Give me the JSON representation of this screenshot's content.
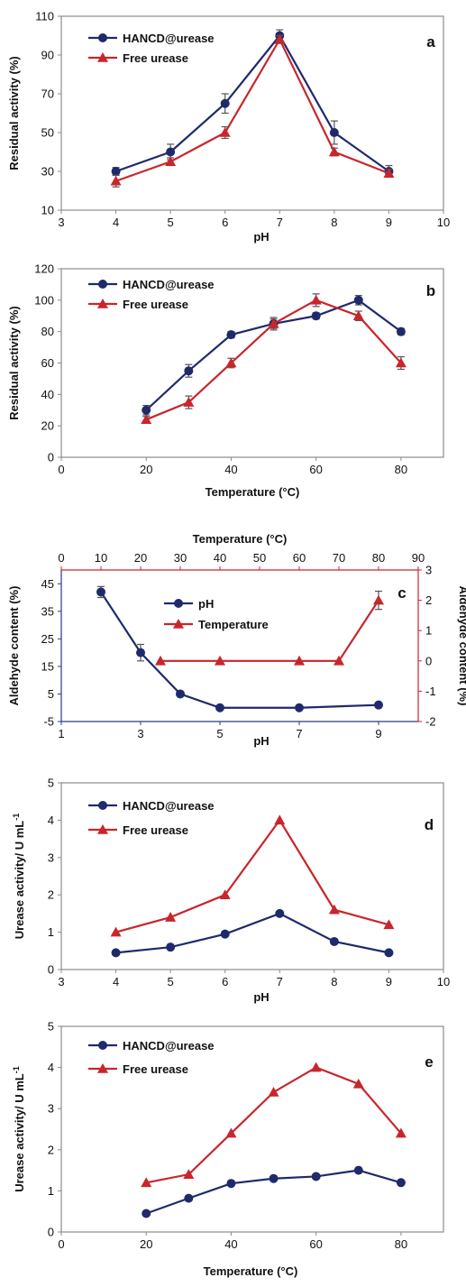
{
  "colors": {
    "navy": "#1f2a6b",
    "red": "#c8262c",
    "axis": "#8c8c8c",
    "error": "#555555"
  },
  "chart_data": [
    {
      "panel": "a",
      "type": "line",
      "xlabel": "pH",
      "ylabel": "Residual activity (%)",
      "xlim": [
        3,
        10
      ],
      "ylim": [
        10,
        110
      ],
      "xticks": [
        3,
        4,
        5,
        6,
        7,
        8,
        9,
        10
      ],
      "yticks": [
        10,
        30,
        50,
        70,
        90,
        110
      ],
      "legend_position": "top-left",
      "series": [
        {
          "name": "HANCD@urease",
          "color": "#1f2a6b",
          "marker": "circle",
          "x": [
            4,
            5,
            6,
            7,
            8,
            9
          ],
          "y": [
            30,
            40,
            65,
            100,
            50,
            30
          ],
          "err": [
            2,
            4,
            5,
            3,
            6,
            3
          ]
        },
        {
          "name": "Free urease",
          "color": "#c8262c",
          "marker": "triangle",
          "x": [
            4,
            5,
            6,
            7,
            8,
            9
          ],
          "y": [
            25,
            35,
            50,
            98,
            40,
            29
          ],
          "err": [
            3,
            2,
            3,
            2,
            2,
            2
          ]
        }
      ]
    },
    {
      "panel": "b",
      "type": "line",
      "xlabel": "Temperature (°C)",
      "ylabel": "Residual activity (%)",
      "xlim": [
        0,
        90
      ],
      "ylim": [
        0,
        120
      ],
      "xticks": [
        0,
        20,
        40,
        60,
        80
      ],
      "yticks": [
        0,
        20,
        40,
        60,
        80,
        100,
        120
      ],
      "legend_position": "top-left",
      "series": [
        {
          "name": "HANCD@urease",
          "color": "#1f2a6b",
          "marker": "circle",
          "x": [
            20,
            30,
            40,
            50,
            60,
            70,
            80
          ],
          "y": [
            30,
            55,
            78,
            85,
            90,
            100,
            80
          ],
          "err": [
            3,
            4,
            2,
            3,
            2,
            3,
            2
          ]
        },
        {
          "name": "Free urease",
          "color": "#c8262c",
          "marker": "triangle",
          "x": [
            20,
            30,
            40,
            50,
            60,
            70,
            80
          ],
          "y": [
            24,
            35,
            60,
            85,
            100,
            90,
            60
          ],
          "err": [
            2,
            4,
            3,
            4,
            4,
            3,
            4
          ]
        }
      ]
    },
    {
      "panel": "c",
      "type": "line",
      "xlabel": "pH",
      "ylabel": "Aldehyde content (%)",
      "x2label": "Temperature (°C)",
      "y2label": "Aldehyde content (%)",
      "xlim": [
        1,
        10
      ],
      "ylim": [
        -5,
        50
      ],
      "x2lim": [
        0,
        90
      ],
      "y2lim": [
        -2,
        3
      ],
      "xticks": [
        1,
        3,
        5,
        7,
        9
      ],
      "yticks": [
        -5,
        5,
        15,
        25,
        35,
        45
      ],
      "x2ticks": [
        0,
        10,
        20,
        30,
        40,
        50,
        60,
        70,
        80,
        90
      ],
      "y2ticks": [
        -2,
        -1,
        0,
        1,
        2,
        3
      ],
      "legend_position": "top-center",
      "series": [
        {
          "name": "pH",
          "color": "#1f2a6b",
          "marker": "circle",
          "axes": "bottom-left",
          "x": [
            2,
            3,
            4,
            5,
            7,
            9
          ],
          "y": [
            42,
            20,
            5,
            0,
            0,
            1
          ],
          "err": [
            2,
            3,
            0.5,
            0,
            0,
            0
          ]
        },
        {
          "name": "Temperature",
          "color": "#c8262c",
          "marker": "triangle",
          "axes": "top-right",
          "x": [
            25,
            40,
            60,
            70,
            80
          ],
          "y": [
            0,
            0,
            0,
            0,
            2
          ],
          "err": [
            0,
            0,
            0,
            0,
            0.3
          ]
        }
      ]
    },
    {
      "panel": "d",
      "type": "line",
      "xlabel": "pH",
      "ylabel": "Urease activity/ U mL",
      "ylabel_superscript": "-1",
      "xlim": [
        3,
        10
      ],
      "ylim": [
        0,
        5
      ],
      "xticks": [
        3,
        4,
        5,
        6,
        7,
        8,
        9,
        10
      ],
      "yticks": [
        0,
        1,
        2,
        3,
        4,
        5
      ],
      "legend_position": "top-left",
      "series": [
        {
          "name": "HANCD@urease",
          "color": "#1f2a6b",
          "marker": "circle",
          "x": [
            4,
            5,
            6,
            7,
            8,
            9
          ],
          "y": [
            0.45,
            0.6,
            0.95,
            1.5,
            0.75,
            0.45
          ]
        },
        {
          "name": "Free urease",
          "color": "#c8262c",
          "marker": "triangle",
          "x": [
            4,
            5,
            6,
            7,
            8,
            9
          ],
          "y": [
            1.0,
            1.4,
            2.0,
            4.0,
            1.6,
            1.2
          ]
        }
      ]
    },
    {
      "panel": "e",
      "type": "line",
      "xlabel": "Temperature (°C)",
      "ylabel": "Urease activity/ U mL",
      "ylabel_superscript": "-1",
      "xlim": [
        0,
        90
      ],
      "ylim": [
        0,
        5
      ],
      "xticks": [
        0,
        20,
        40,
        60,
        80
      ],
      "yticks": [
        0,
        1,
        2,
        3,
        4,
        5
      ],
      "legend_position": "top-left",
      "series": [
        {
          "name": "HANCD@urease",
          "color": "#1f2a6b",
          "marker": "circle",
          "x": [
            20,
            30,
            40,
            50,
            60,
            70,
            80
          ],
          "y": [
            0.45,
            0.82,
            1.18,
            1.3,
            1.35,
            1.5,
            1.2
          ]
        },
        {
          "name": "Free urease",
          "color": "#c8262c",
          "marker": "triangle",
          "x": [
            20,
            30,
            40,
            50,
            60,
            70,
            80
          ],
          "y": [
            1.2,
            1.4,
            2.4,
            3.4,
            4.0,
            3.6,
            2.4
          ]
        }
      ]
    }
  ]
}
